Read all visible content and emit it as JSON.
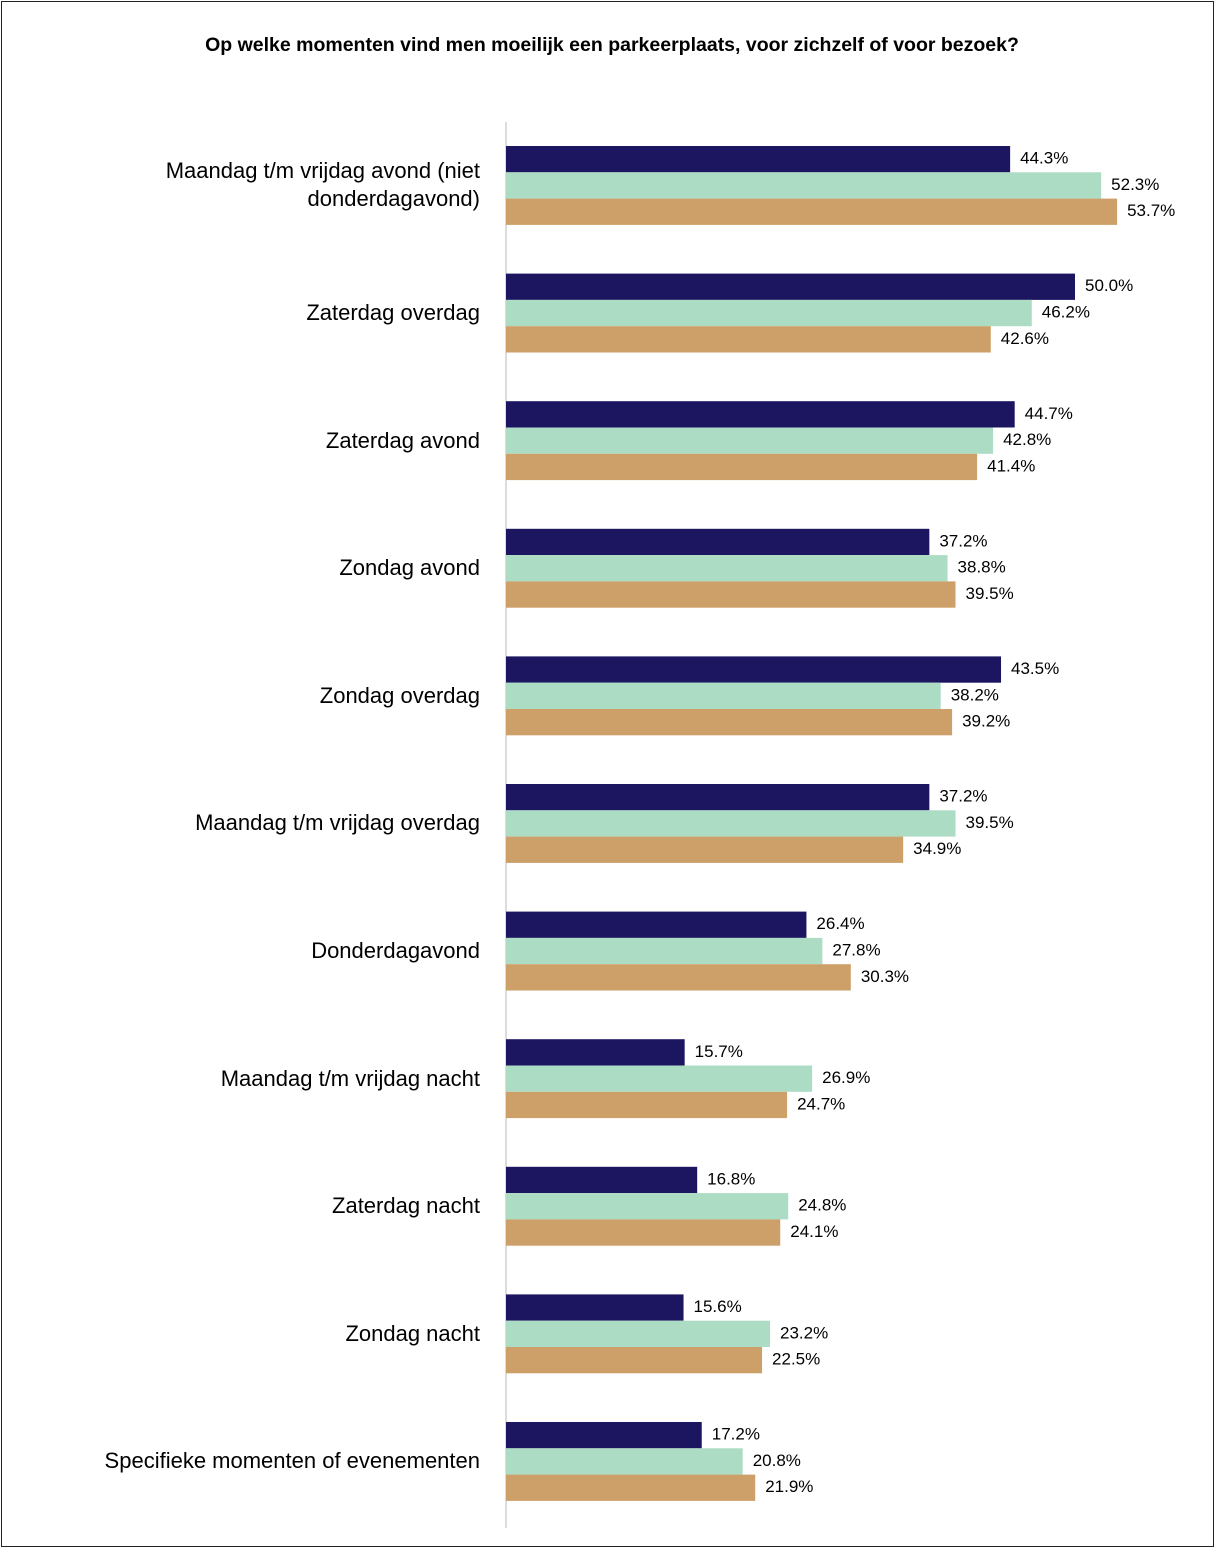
{
  "chart_data": {
    "type": "bar",
    "orientation": "horizontal",
    "title": "Op welke momenten vind men moeilijk een parkeerplaats, voor zichzelf of voor bezoek?",
    "categories": [
      "Maandag t/m vrijdag avond (niet donderdagavond)",
      "Zaterdag overdag",
      "Zaterdag avond",
      "Zondag avond",
      "Zondag overdag",
      "Maandag t/m vrijdag overdag",
      "Donderdagavond",
      "Maandag t/m vrijdag nacht",
      "Zaterdag nacht",
      "Zondag nacht",
      "Specifieke momenten of evenementen"
    ],
    "series": [
      {
        "color": "#1c1660",
        "values": [
          44.3,
          50.0,
          44.7,
          37.2,
          43.5,
          37.2,
          26.4,
          15.7,
          16.8,
          15.6,
          17.2
        ],
        "value_labels": [
          "44.3%",
          "50.0%",
          "44.7%",
          "37.2%",
          "43.5%",
          "37.2%",
          "26.4%",
          "15.7%",
          "16.8%",
          "15.6%",
          "17.2%"
        ]
      },
      {
        "color": "#acdcc4",
        "values": [
          52.3,
          46.2,
          42.8,
          38.8,
          38.2,
          39.5,
          27.8,
          26.9,
          24.8,
          23.2,
          20.8
        ],
        "value_labels": [
          "52.3%",
          "46.2%",
          "42.8%",
          "38.8%",
          "38.2%",
          "39.5%",
          "27.8%",
          "26.9%",
          "24.8%",
          "23.2%",
          "20.8%"
        ]
      },
      {
        "color": "#cda06a",
        "values": [
          53.7,
          42.6,
          41.4,
          39.5,
          39.2,
          34.9,
          30.3,
          24.7,
          24.1,
          22.5,
          21.9
        ],
        "value_labels": [
          "53.7%",
          "42.6%",
          "41.4%",
          "39.5%",
          "39.2%",
          "34.9%",
          "30.3%",
          "24.7%",
          "24.1%",
          "22.5%",
          "21.9%"
        ]
      }
    ]
  }
}
